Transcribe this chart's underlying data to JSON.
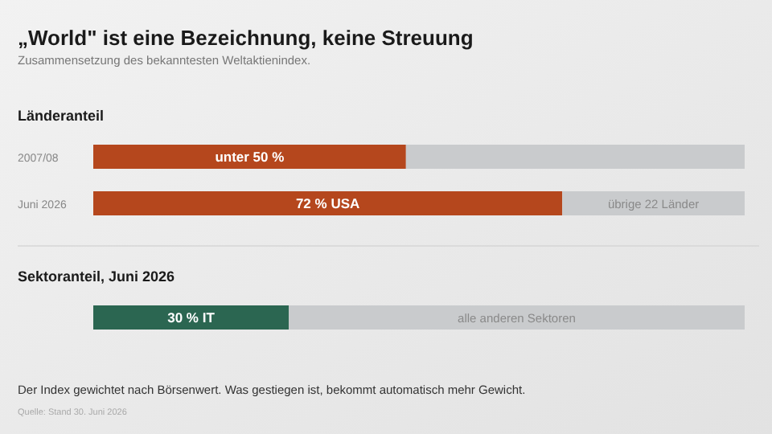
{
  "chart_data": [
    {
      "type": "other",
      "title": "„World\" ist eine Bezeichnung, keine Streuung",
      "subtitle": "Zusammensetzung des bekanntesten Weltaktienindex."
    },
    {
      "type": "bar",
      "orientation": "horizontal",
      "stacked": true,
      "title": "Länderanteil",
      "categories": [
        "2007/08",
        "Juni 2026"
      ],
      "xlim": [
        0,
        100
      ],
      "tick_labels": "y",
      "series": [
        {
          "color": "#b5471d",
          "values": [
            48,
            72
          ],
          "value_labels": [
            "unter 50 %",
            "72 % USA"
          ]
        },
        {
          "color": "#c9cbcd",
          "values": [
            52,
            28
          ],
          "value_labels": [
            null,
            "übrige 22 Länder"
          ]
        }
      ]
    },
    {
      "type": "bar",
      "orientation": "horizontal",
      "stacked": true,
      "title": "Sektoranteil, Juni 2026",
      "categories": [
        null
      ],
      "xlim": [
        0,
        100
      ],
      "tick_labels": false,
      "series": [
        {
          "color": "#2b6651",
          "values": [
            30
          ],
          "value_labels": [
            "30 % IT"
          ]
        },
        {
          "color": "#c9cbcd",
          "values": [
            70
          ],
          "value_labels": [
            "alle anderen Sektoren"
          ]
        }
      ],
      "annotations": [
        "Der Index gewichtet nach Börsenwert. Was gestiegen ist, bekommt automatisch mehr Gewicht.",
        "Quelle: Stand 30. Juni 2026"
      ]
    }
  ]
}
